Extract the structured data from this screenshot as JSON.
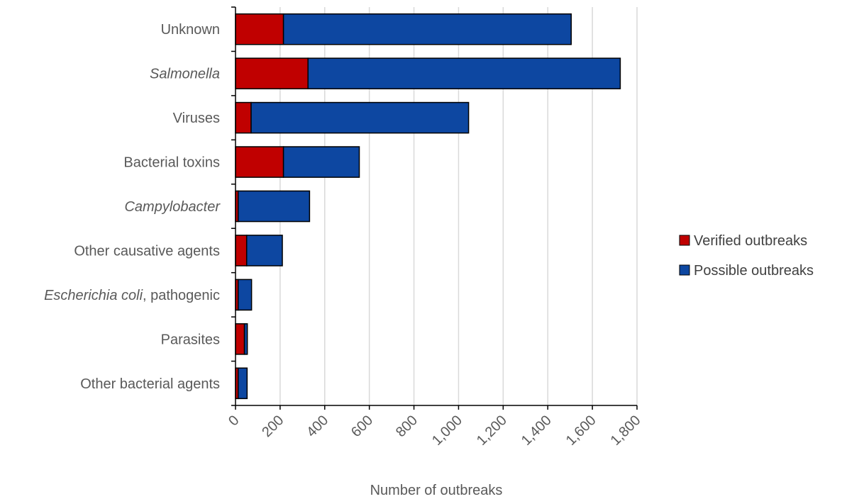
{
  "chart_data": {
    "type": "bar",
    "orientation": "horizontal",
    "stacked": true,
    "categories": [
      "Unknown",
      "Salmonella",
      "Viruses",
      "Bacterial toxins",
      "Campylobacter",
      "Other causative agents",
      "Escherichia coli, pathogenic",
      "Parasites",
      "Other bacterial agents"
    ],
    "category_parts": [
      [
        {
          "text": "Unknown",
          "italic": false
        }
      ],
      [
        {
          "text": "Salmonella",
          "italic": true
        }
      ],
      [
        {
          "text": "Viruses",
          "italic": false
        }
      ],
      [
        {
          "text": "Bacterial toxins",
          "italic": false
        }
      ],
      [
        {
          "text": "Campylobacter",
          "italic": true
        }
      ],
      [
        {
          "text": "Other causative agents",
          "italic": false
        }
      ],
      [
        {
          "text": "Escherichia coli",
          "italic": true
        },
        {
          "text": ", pathogenic",
          "italic": false
        }
      ],
      [
        {
          "text": "Parasites",
          "italic": false
        }
      ],
      [
        {
          "text": "Other bacterial agents",
          "italic": false
        }
      ]
    ],
    "series": [
      {
        "name": "Verified outbreaks",
        "color": "#c00000",
        "values": [
          215,
          325,
          70,
          215,
          12,
          50,
          12,
          40,
          12
        ]
      },
      {
        "name": "Possible outbreaks",
        "color": "#0d47a1",
        "values": [
          1290,
          1400,
          975,
          340,
          320,
          160,
          60,
          13,
          40
        ]
      }
    ],
    "xlabel": "Number  of outbreaks",
    "ylabel": "",
    "title": "",
    "xlim": [
      0,
      1800
    ],
    "xticks": [
      0,
      200,
      400,
      600,
      800,
      1000,
      1200,
      1400,
      1600,
      1800
    ],
    "xtick_labels": [
      "0",
      "200",
      "400",
      "600",
      "800",
      "1,000",
      "1,200",
      "1,400",
      "1,600",
      "1,800"
    ],
    "grid": "vertical",
    "legend_position": "right"
  }
}
